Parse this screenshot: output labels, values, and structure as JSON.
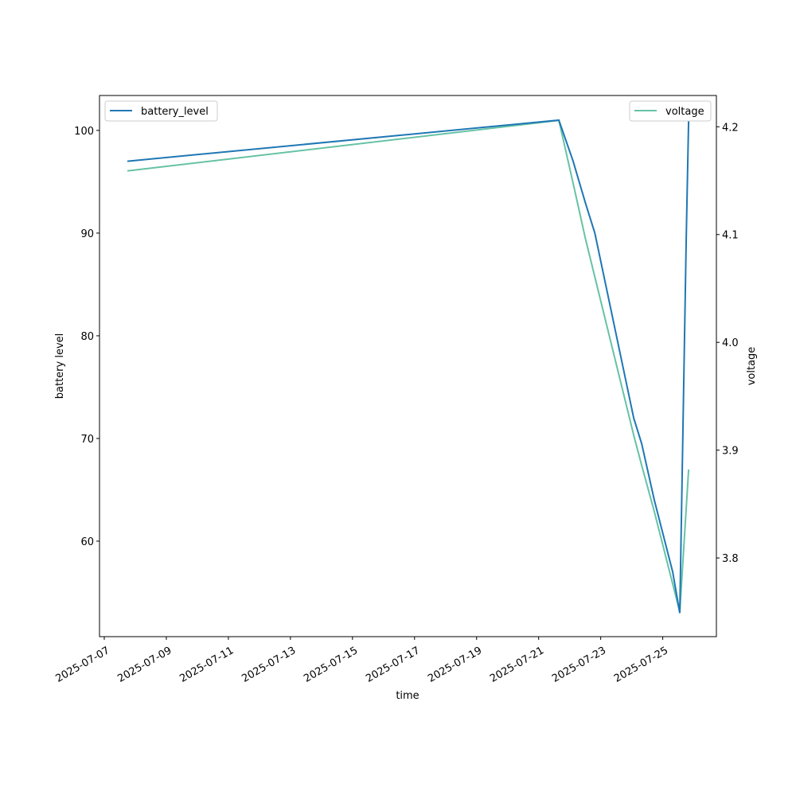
{
  "chart_data": {
    "type": "line",
    "xlabel": "time",
    "ylabel_left": "battery level",
    "ylabel_right": "voltage",
    "x_ticks": [
      "2025-07-07",
      "2025-07-09",
      "2025-07-11",
      "2025-07-13",
      "2025-07-15",
      "2025-07-17",
      "2025-07-19",
      "2025-07-21",
      "2025-07-23",
      "2025-07-25"
    ],
    "xlim": [
      "2025-07-06T20:18",
      "2025-07-26T17:30"
    ],
    "ylim_left": [
      50.7,
      103.4
    ],
    "ylim_right": [
      3.727,
      4.229
    ],
    "y_ticks_left": [
      60,
      70,
      80,
      90,
      100
    ],
    "y_ticks_right": [
      "3.8",
      "3.9",
      "4.0",
      "4.1",
      "4.2"
    ],
    "grid": false,
    "series": [
      {
        "name": "battery_level",
        "axis": "left",
        "color": "#1f77b4",
        "legend": "top-left",
        "x": [
          "2025-07-07T17:50",
          "2025-07-21T15:40",
          "2025-07-22T02:40",
          "2025-07-22T12:00",
          "2025-07-22T19:30",
          "2025-07-24T01:30",
          "2025-07-24T07:40",
          "2025-07-24T17:30",
          "2025-07-25T07:40",
          "2025-07-25T13:10",
          "2025-07-25T18:10",
          "2025-07-25T20:00"
        ],
        "values": [
          97,
          101,
          97,
          93,
          90,
          72,
          69.5,
          64,
          57,
          53,
          89.5,
          101
        ]
      },
      {
        "name": "voltage",
        "axis": "right",
        "color": "#66c2a5",
        "legend": "top-right",
        "x": [
          "2025-07-07T17:50",
          "2025-07-21T15:40",
          "2025-07-22T03:10",
          "2025-07-22T12:00",
          "2025-07-24T01:30",
          "2025-07-24T07:40",
          "2025-07-24T17:30",
          "2025-07-25T13:10",
          "2025-07-25T20:00"
        ],
        "values": [
          4.159,
          4.206,
          4.145,
          4.097,
          3.914,
          3.886,
          3.843,
          3.75,
          3.882
        ]
      }
    ]
  }
}
